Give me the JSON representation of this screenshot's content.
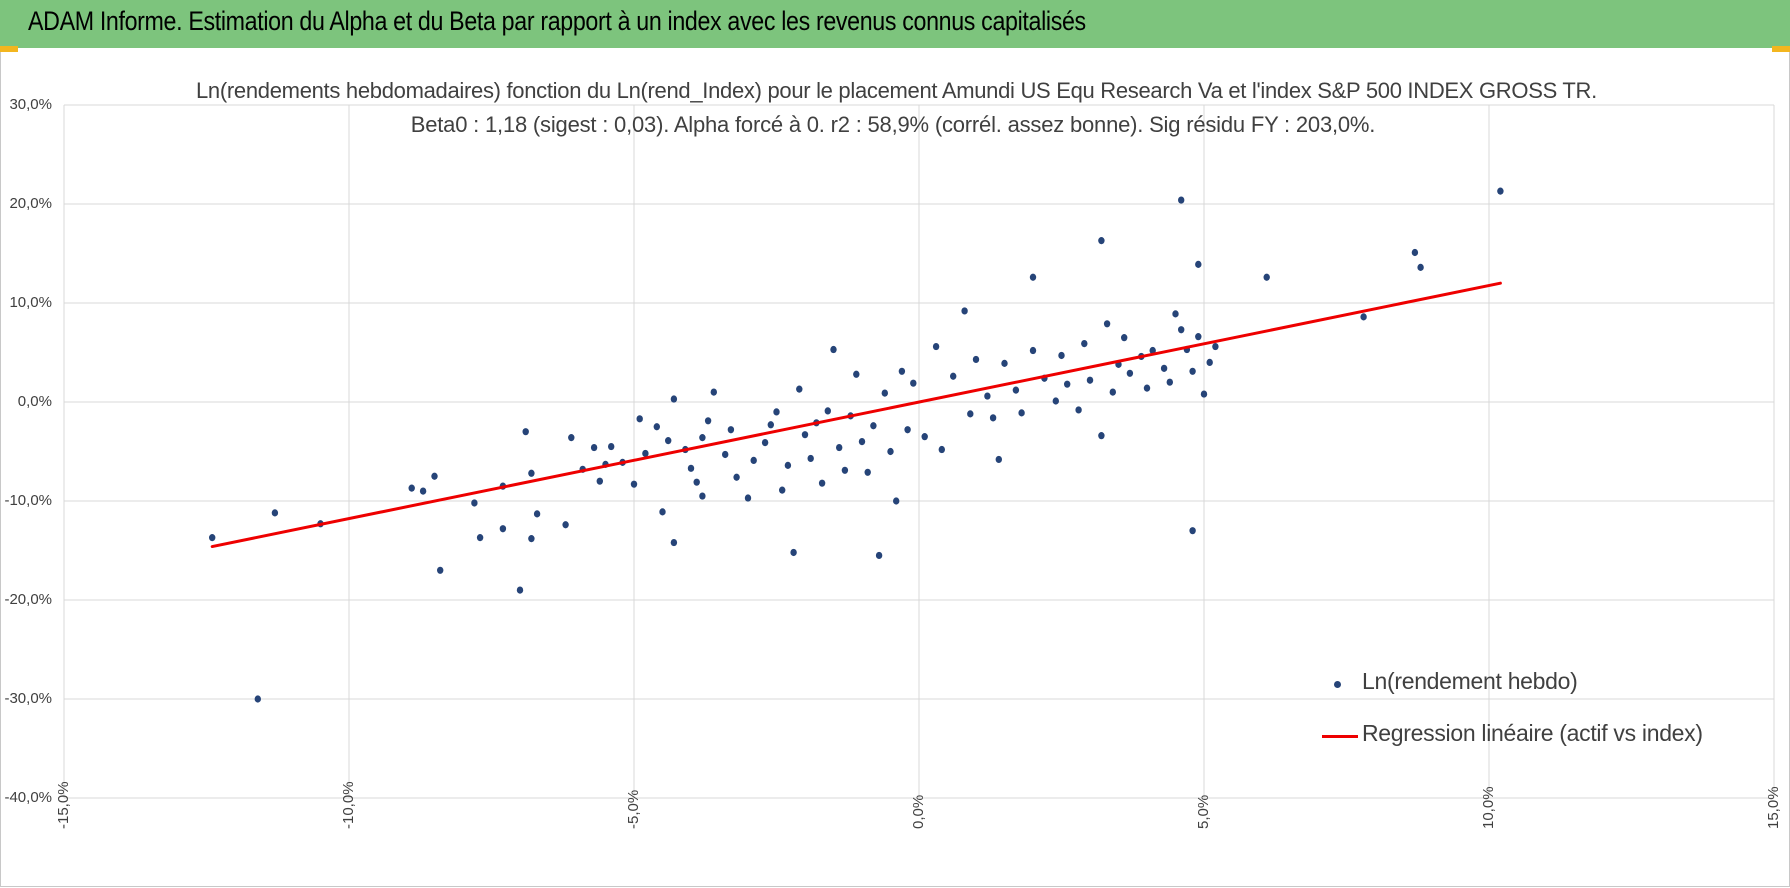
{
  "header": {
    "title": "ADAM Informe. Estimation du Alpha et du Beta par rapport à un index avec les revenus connus capitalisés"
  },
  "colors": {
    "banner": "#7dc47d",
    "accent_corner": "#f3b61f",
    "points": "#264478",
    "regression": "#ee0000",
    "grid": "#d9d9d9"
  },
  "chart_data": {
    "type": "scatter",
    "title": "Ln(rendements hebdomadaires) fonction du Ln(rend_Index) pour le placement Amundi US Equ Research Va et l'index S&P 500 INDEX GROSS TR.",
    "subtitle": "Beta0 : 1,18 (sigest : 0,03). Alpha forcé à 0. r2 : 58,9% (corrél. assez bonne). Sig résidu FY : 203,0%.",
    "xlim": [
      -15,
      15
    ],
    "ylim": [
      -40,
      30
    ],
    "x_ticks": [
      "-15,0%",
      "-10,0%",
      "-5,0%",
      "0,0%",
      "5,0%",
      "10,0%",
      "15,0%"
    ],
    "y_ticks": [
      "30,0%",
      "20,0%",
      "10,0%",
      "0,0%",
      "-10,0%",
      "-20,0%",
      "-30,0%",
      "-40,0%"
    ],
    "grid": true,
    "legend_position": "bottom-right",
    "series": [
      {
        "name": "Ln(rendement hebdo)",
        "kind": "scatter",
        "points": [
          [
            -12.4,
            -13.7
          ],
          [
            -11.3,
            -11.2
          ],
          [
            -11.6,
            -30.0
          ],
          [
            -10.5,
            -12.3
          ],
          [
            -8.9,
            -8.7
          ],
          [
            -8.7,
            -9.0
          ],
          [
            -8.5,
            -7.5
          ],
          [
            -8.4,
            -17.0
          ],
          [
            -7.8,
            -10.2
          ],
          [
            -7.7,
            -13.7
          ],
          [
            -7.3,
            -8.5
          ],
          [
            -7.3,
            -12.8
          ],
          [
            -7.0,
            -19.0
          ],
          [
            -6.9,
            -3.0
          ],
          [
            -6.8,
            -7.2
          ],
          [
            -6.8,
            -13.8
          ],
          [
            -6.7,
            -11.3
          ],
          [
            -6.2,
            -12.4
          ],
          [
            -6.1,
            -3.6
          ],
          [
            -5.9,
            -6.8
          ],
          [
            -5.7,
            -4.6
          ],
          [
            -5.6,
            -8.0
          ],
          [
            -5.5,
            -6.3
          ],
          [
            -5.4,
            -4.5
          ],
          [
            -5.2,
            -6.1
          ],
          [
            -5.0,
            -8.3
          ],
          [
            -4.9,
            -1.7
          ],
          [
            -4.8,
            -5.2
          ],
          [
            -4.6,
            -2.5
          ],
          [
            -4.5,
            -11.1
          ],
          [
            -4.4,
            -3.9
          ],
          [
            -4.3,
            0.3
          ],
          [
            -4.3,
            -14.2
          ],
          [
            -4.1,
            -4.8
          ],
          [
            -4.0,
            -6.7
          ],
          [
            -3.9,
            -8.1
          ],
          [
            -3.8,
            -9.5
          ],
          [
            -3.8,
            -3.6
          ],
          [
            -3.7,
            -1.9
          ],
          [
            -3.6,
            1.0
          ],
          [
            -3.4,
            -5.3
          ],
          [
            -3.3,
            -2.8
          ],
          [
            -3.2,
            -7.6
          ],
          [
            -3.0,
            -9.7
          ],
          [
            -2.9,
            -5.9
          ],
          [
            -2.7,
            -4.1
          ],
          [
            -2.6,
            -2.3
          ],
          [
            -2.5,
            -1.0
          ],
          [
            -2.4,
            -8.9
          ],
          [
            -2.3,
            -6.4
          ],
          [
            -2.2,
            -15.2
          ],
          [
            -2.1,
            1.3
          ],
          [
            -2.0,
            -3.3
          ],
          [
            -1.9,
            -5.7
          ],
          [
            -1.8,
            -2.1
          ],
          [
            -1.7,
            -8.2
          ],
          [
            -1.6,
            -0.9
          ],
          [
            -1.5,
            5.3
          ],
          [
            -1.4,
            -4.6
          ],
          [
            -1.3,
            -6.9
          ],
          [
            -1.2,
            -1.4
          ],
          [
            -1.1,
            2.8
          ],
          [
            -1.0,
            -4.0
          ],
          [
            -0.9,
            -7.1
          ],
          [
            -0.8,
            -2.4
          ],
          [
            -0.7,
            -15.5
          ],
          [
            -0.6,
            0.9
          ],
          [
            -0.5,
            -5.0
          ],
          [
            -0.4,
            -10.0
          ],
          [
            -0.3,
            3.1
          ],
          [
            -0.2,
            -2.8
          ],
          [
            -0.1,
            1.9
          ],
          [
            0.1,
            -3.5
          ],
          [
            0.3,
            5.6
          ],
          [
            0.4,
            -4.8
          ],
          [
            0.6,
            2.6
          ],
          [
            0.8,
            9.2
          ],
          [
            0.9,
            -1.2
          ],
          [
            1.0,
            4.3
          ],
          [
            1.2,
            0.6
          ],
          [
            1.3,
            -1.6
          ],
          [
            1.4,
            -5.8
          ],
          [
            1.5,
            3.9
          ],
          [
            1.7,
            1.2
          ],
          [
            1.8,
            -1.1
          ],
          [
            2.0,
            5.2
          ],
          [
            2.0,
            12.6
          ],
          [
            2.2,
            2.4
          ],
          [
            2.4,
            0.1
          ],
          [
            2.5,
            4.7
          ],
          [
            2.6,
            1.8
          ],
          [
            2.8,
            -0.8
          ],
          [
            2.9,
            5.9
          ],
          [
            3.0,
            2.2
          ],
          [
            3.2,
            16.3
          ],
          [
            3.2,
            -3.4
          ],
          [
            3.3,
            7.9
          ],
          [
            3.4,
            1.0
          ],
          [
            3.5,
            3.8
          ],
          [
            3.6,
            6.5
          ],
          [
            3.7,
            2.9
          ],
          [
            3.9,
            4.6
          ],
          [
            4.0,
            1.4
          ],
          [
            4.1,
            5.2
          ],
          [
            4.3,
            3.4
          ],
          [
            4.4,
            2.0
          ],
          [
            4.5,
            8.9
          ],
          [
            4.6,
            20.4
          ],
          [
            4.6,
            7.3
          ],
          [
            4.7,
            5.3
          ],
          [
            4.8,
            3.1
          ],
          [
            4.8,
            -13.0
          ],
          [
            4.9,
            6.6
          ],
          [
            4.9,
            13.9
          ],
          [
            5.0,
            0.8
          ],
          [
            5.1,
            4.0
          ],
          [
            5.2,
            5.6
          ],
          [
            6.1,
            12.6
          ],
          [
            7.8,
            8.6
          ],
          [
            8.7,
            15.1
          ],
          [
            8.8,
            13.6
          ],
          [
            10.2,
            21.3
          ]
        ]
      },
      {
        "name": "Regression linéaire (actif vs index)",
        "kind": "line",
        "points": [
          [
            -12.4,
            -14.6
          ],
          [
            10.2,
            12.0
          ]
        ]
      }
    ]
  }
}
